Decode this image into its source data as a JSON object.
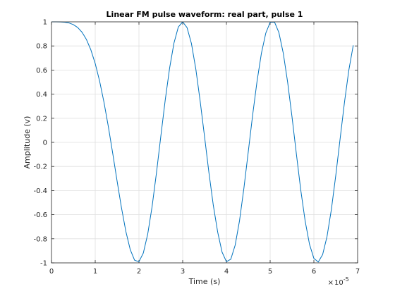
{
  "chart_data": {
    "type": "line",
    "title": "Linear FM pulse waveform: real part, pulse 1",
    "xlabel": "Time (s)",
    "ylabel": "Amplitude (v)",
    "x_exponent_label": "10",
    "x_exponent_power": "-5",
    "xlim": [
      0,
      7
    ],
    "ylim": [
      -1,
      1
    ],
    "x_scale": 1e-05,
    "grid": true,
    "xticks": [
      0,
      1,
      2,
      3,
      4,
      5,
      6,
      7
    ],
    "xtick_labels": [
      "0",
      "1",
      "2",
      "3",
      "4",
      "5",
      "6",
      "7"
    ],
    "yticks": [
      1,
      0.8,
      0.6,
      0.4,
      0.2,
      0,
      -0.2,
      -0.4,
      -0.6,
      -0.8,
      -1
    ],
    "ytick_labels": [
      "1",
      "0.8",
      "0.6",
      "0.4",
      "0.2",
      "0",
      "-0.2",
      "-0.4",
      "-0.6",
      "-0.8",
      "-1"
    ],
    "line_color": "#0072bd",
    "series": [
      {
        "x": [
          0,
          0.1,
          0.2,
          0.3,
          0.4,
          0.5,
          0.6,
          0.7,
          0.8,
          0.9,
          1.0,
          1.1,
          1.2,
          1.3,
          1.4,
          1.5,
          1.6,
          1.7,
          1.8,
          1.9,
          2.0,
          2.1,
          2.2,
          2.3,
          2.4,
          2.5,
          2.6,
          2.7,
          2.8,
          2.9,
          3.0,
          3.1,
          3.2,
          3.3,
          3.4,
          3.5,
          3.6,
          3.7,
          3.8,
          3.9,
          4.0,
          4.1,
          4.2,
          4.3,
          4.4,
          4.5,
          4.6,
          4.7,
          4.8,
          4.9,
          5.0,
          5.1,
          5.2,
          5.3,
          5.4,
          5.5,
          5.6,
          5.7,
          5.8,
          5.9,
          6.0,
          6.1,
          6.2,
          6.3,
          6.4,
          6.5,
          6.6,
          6.7,
          6.8,
          6.9
        ],
        "values": [
          1.0,
          1.0,
          0.999,
          0.997,
          0.991,
          0.977,
          0.953,
          0.913,
          0.853,
          0.768,
          0.654,
          0.509,
          0.333,
          0.131,
          -0.091,
          -0.321,
          -0.542,
          -0.738,
          -0.889,
          -0.978,
          -0.99,
          -0.918,
          -0.762,
          -0.534,
          -0.254,
          0.051,
          0.349,
          0.614,
          0.823,
          0.957,
          1.0,
          0.952,
          0.82,
          0.609,
          0.341,
          0.047,
          -0.251,
          -0.522,
          -0.744,
          -0.91,
          -0.99,
          -0.97,
          -0.853,
          -0.649,
          -0.38,
          -0.077,
          0.228,
          0.506,
          0.739,
          0.906,
          0.996,
          0.998,
          0.911,
          0.74,
          0.499,
          0.211,
          -0.097,
          -0.396,
          -0.652,
          -0.846,
          -0.963,
          -0.993,
          -0.931,
          -0.782,
          -0.557,
          -0.276,
          0.03,
          0.334,
          0.601,
          0.805
        ]
      }
    ]
  }
}
